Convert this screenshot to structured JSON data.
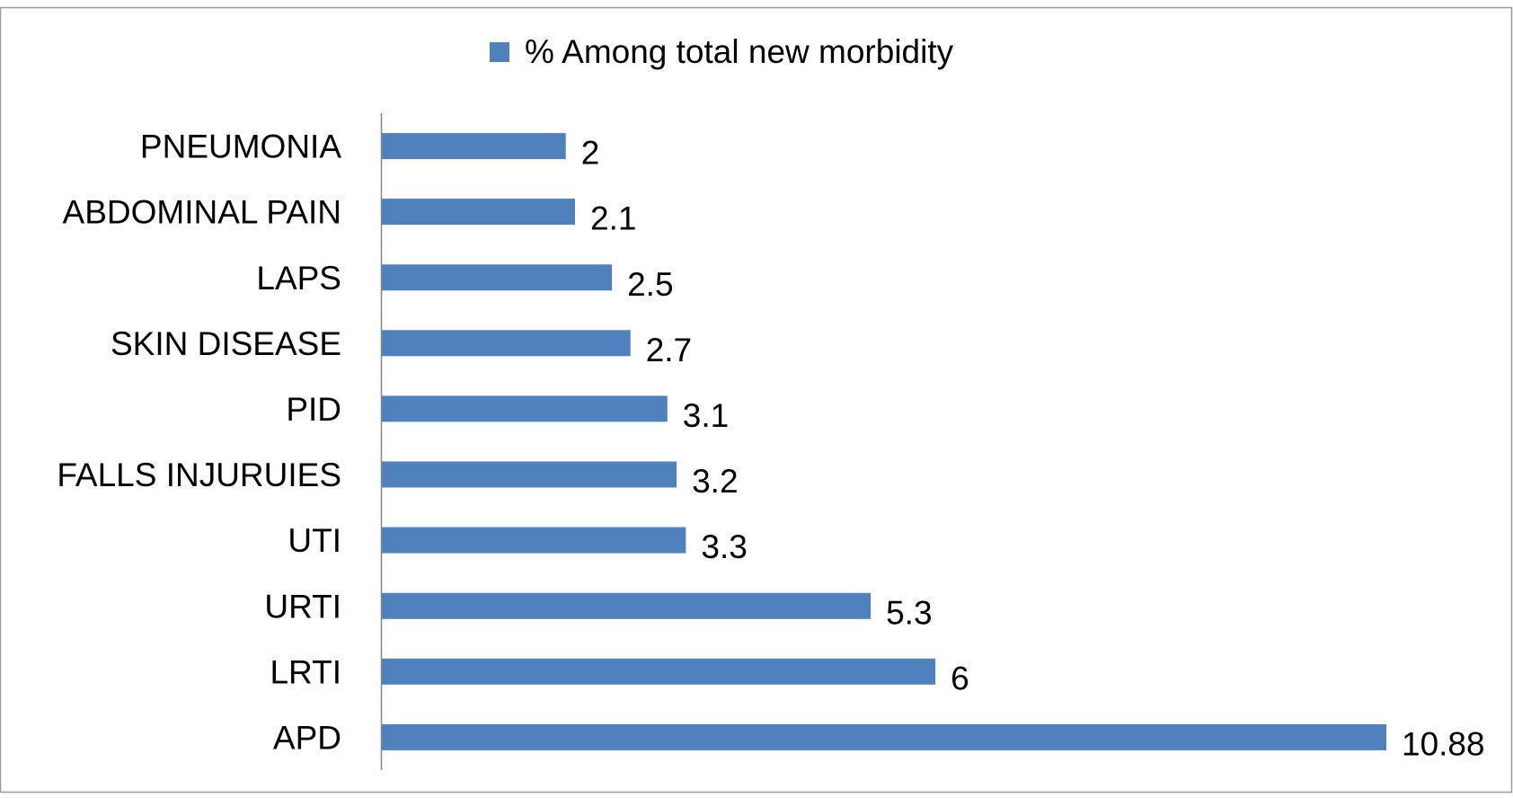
{
  "chart_data": {
    "type": "bar",
    "orientation": "horizontal",
    "categories": [
      "PNEUMONIA",
      "ABDOMINAL PAIN",
      "LAPS",
      "SKIN DISEASE",
      "PID",
      "FALLS INJURUIES",
      "UTI",
      "URTI",
      "LRTI",
      "APD"
    ],
    "series": [
      {
        "name": "% Among total new morbidity",
        "values": [
          2,
          2.1,
          2.5,
          2.7,
          3.1,
          3.2,
          3.3,
          5.3,
          6,
          10.88
        ],
        "value_labels": [
          "2",
          "2.1",
          "2.5",
          "2.7",
          "3.1",
          "3.2",
          "3.3",
          "5.3",
          "6",
          "10.88"
        ],
        "color": "#4f81bd"
      }
    ],
    "title": "",
    "xlabel": "",
    "ylabel": "",
    "xlim": [
      0,
      10.88
    ],
    "grid": false,
    "legend": {
      "position": "top"
    },
    "data_labels": true
  }
}
